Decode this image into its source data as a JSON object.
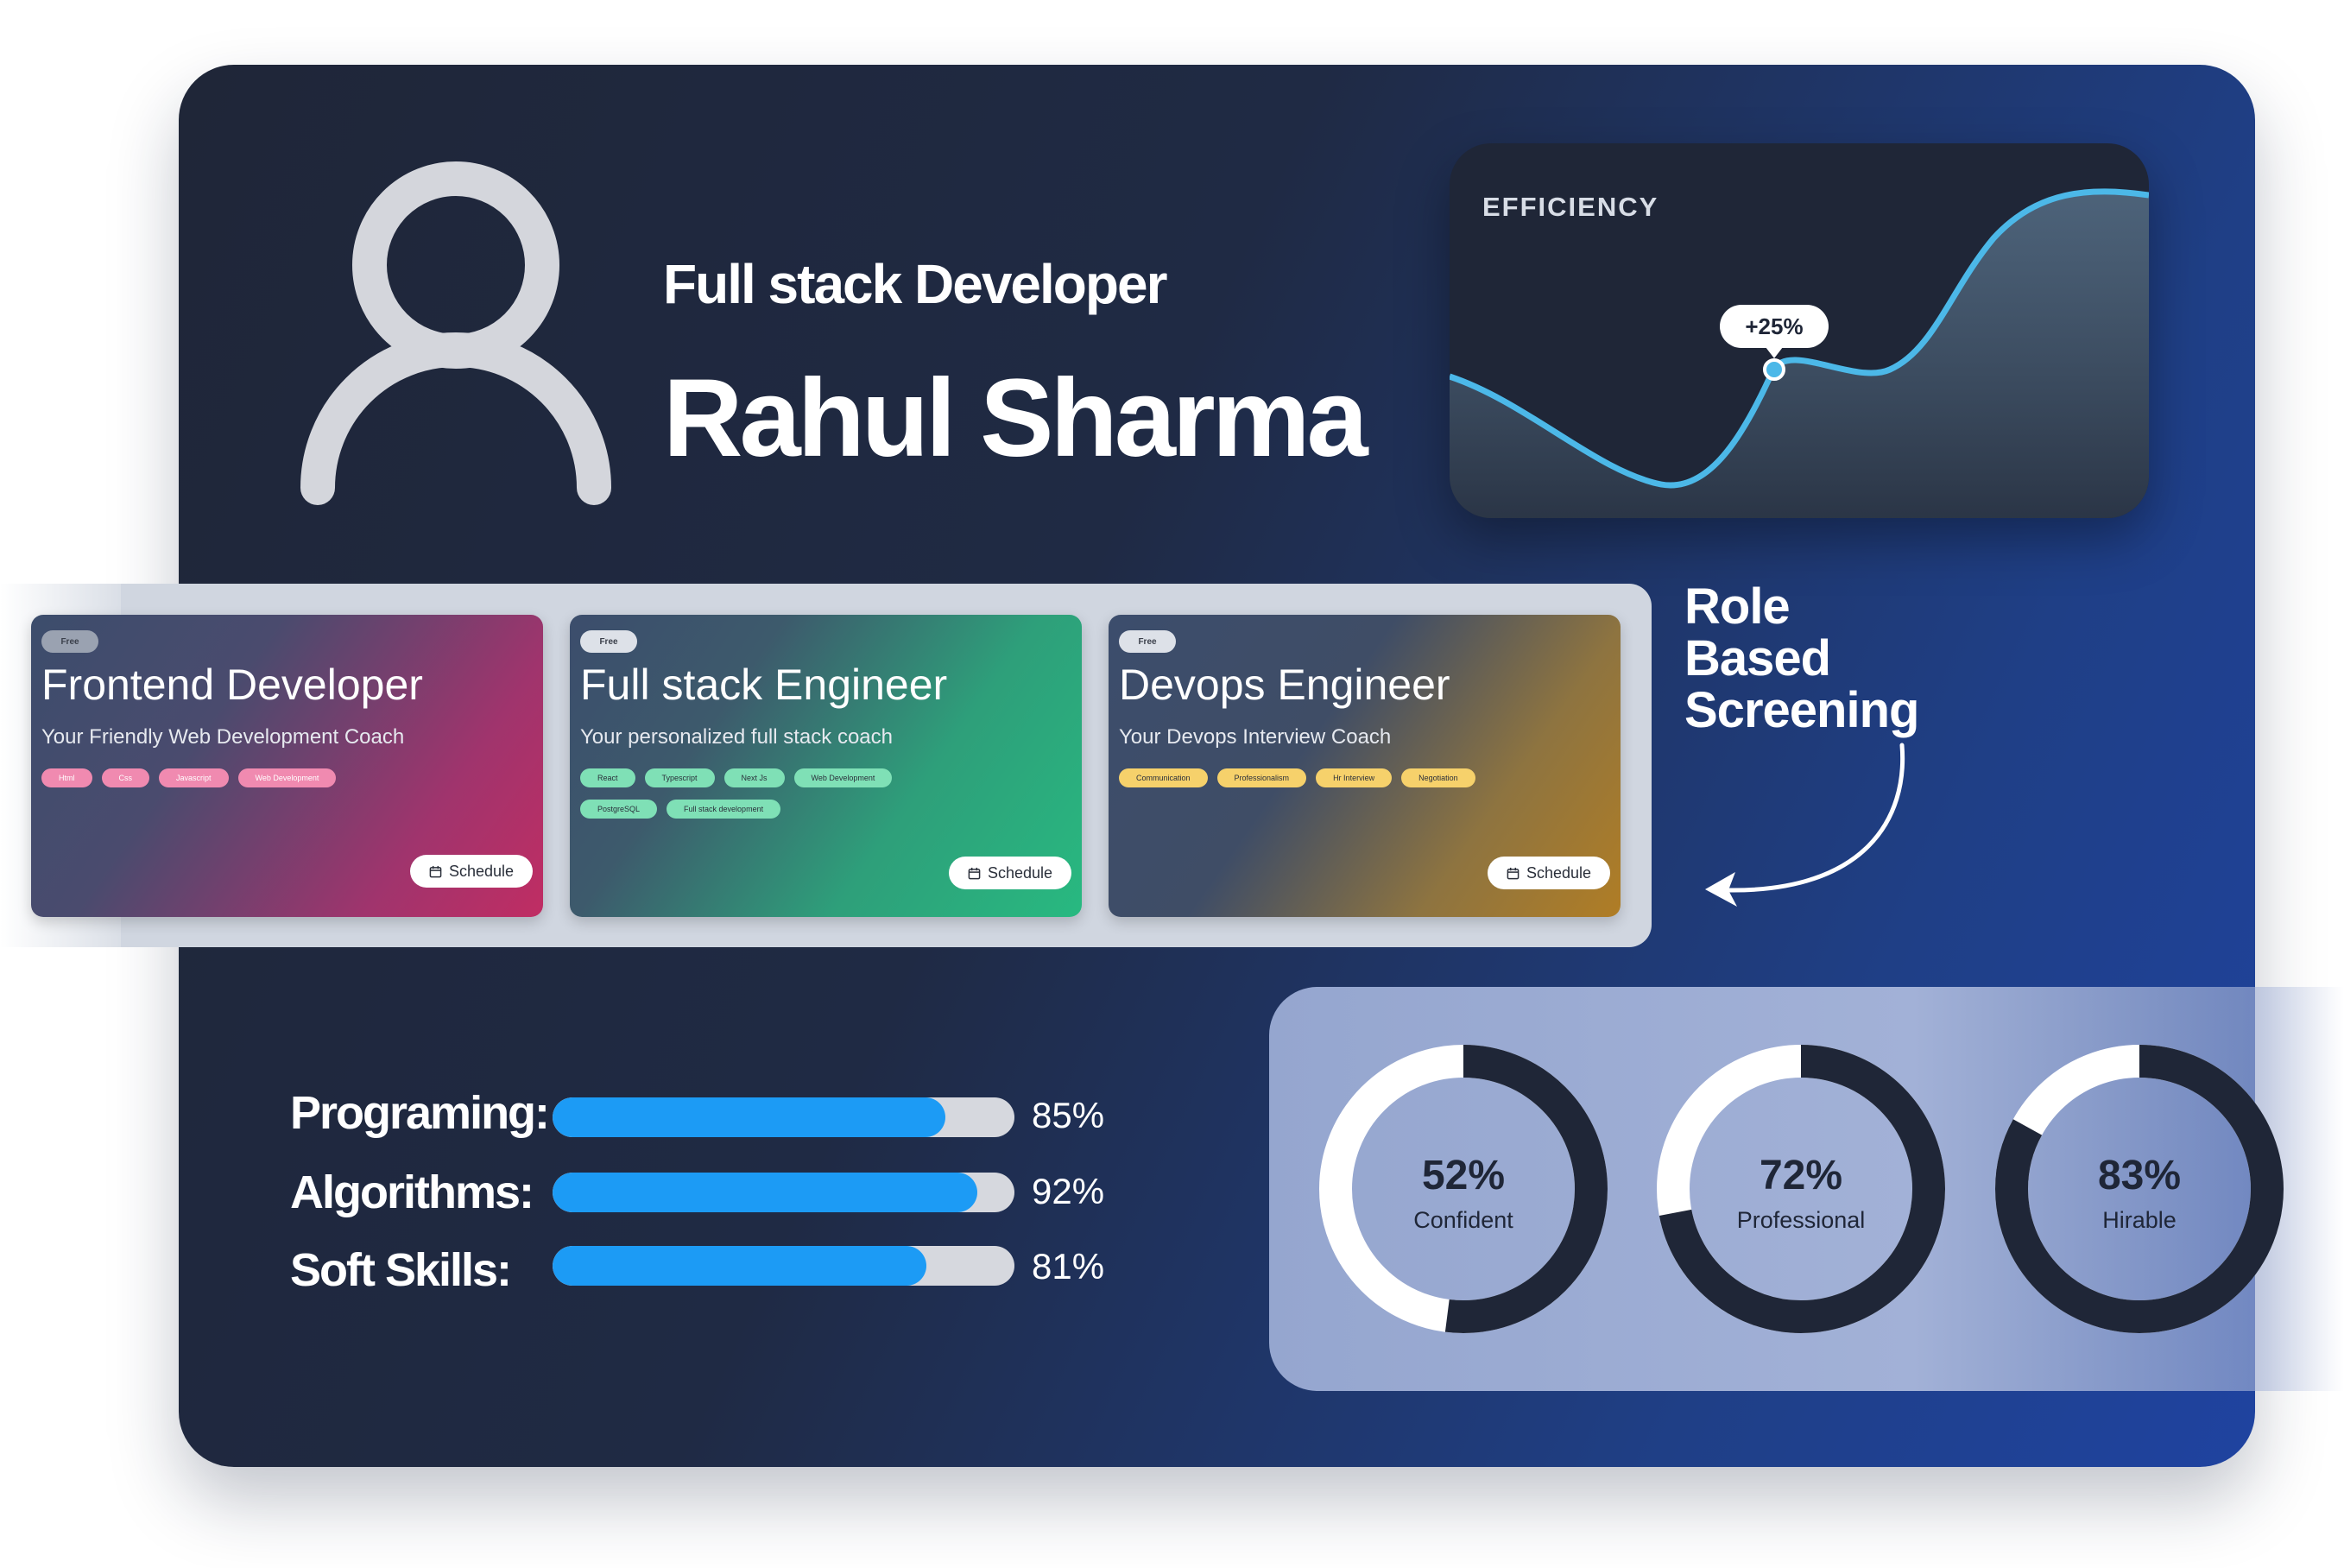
{
  "profile": {
    "role": "Full stack Developer",
    "name": "Rahul Sharma"
  },
  "efficiency": {
    "title": "EFFICIENCY",
    "badge": "+25%"
  },
  "courses": [
    {
      "badge": "Free",
      "title": "Frontend Developer",
      "subtitle": "Your Friendly Web Development Coach",
      "tags": [
        "Html",
        "Css",
        "Javascript",
        "Web Development"
      ],
      "button": "Schedule"
    },
    {
      "badge": "Free",
      "title": "Full stack Engineer",
      "subtitle": "Your personalized full stack coach",
      "tags": [
        "React",
        "Typescript",
        "Next Js",
        "Web Development",
        "PostgreSQL",
        "Full stack development"
      ],
      "button": "Schedule"
    },
    {
      "badge": "Free",
      "title": "Devops Engineer",
      "subtitle": "Your Devops Interview Coach",
      "tags": [
        "Communication",
        "Professionalism",
        "Hr Interview",
        "Negotiation"
      ],
      "button": "Schedule"
    }
  ],
  "role_screening": {
    "line1": "Role",
    "line2": "Based",
    "line3": "Screening"
  },
  "skills": [
    {
      "label": "Programing:",
      "value": 85,
      "display": "85%"
    },
    {
      "label": "Algorithms:",
      "value": 92,
      "display": "92%"
    },
    {
      "label": "Soft Skills:",
      "value": 81,
      "display": "81%"
    }
  ],
  "metrics": [
    {
      "value": 52,
      "display": "52%",
      "label": "Confident"
    },
    {
      "value": 72,
      "display": "72%",
      "label": "Professional"
    },
    {
      "value": 83,
      "display": "83%",
      "label": "Hirable"
    }
  ],
  "colors": {
    "accent": "#1c9bf5",
    "dark": "#1f2637",
    "chart_line": "#4cb8e8",
    "tag_pink": "#f08ab0",
    "tag_green": "#7fe0b6",
    "tag_yellow": "#f6d16b"
  }
}
